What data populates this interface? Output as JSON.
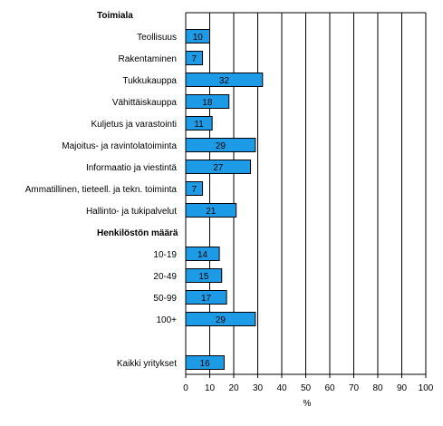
{
  "chart_data": {
    "type": "bar",
    "orientation": "horizontal",
    "xlabel": "%",
    "xlim": [
      0,
      100
    ],
    "xticks": [
      "0",
      "10",
      "20",
      "30",
      "40",
      "50",
      "60",
      "70",
      "80",
      "90",
      "100"
    ],
    "grid": "vertical",
    "bar_color": "#1E9BE6",
    "bar_edge_color": "#000000",
    "rows": [
      {
        "kind": "header",
        "label": "Toimiala"
      },
      {
        "kind": "bar",
        "label": "Teollisuus",
        "value": 10,
        "value_label": "10"
      },
      {
        "kind": "bar",
        "label": "Rakentaminen",
        "value": 7,
        "value_label": "7"
      },
      {
        "kind": "bar",
        "label": "Tukkukauppa",
        "value": 32,
        "value_label": "32"
      },
      {
        "kind": "bar",
        "label": "Vähittäiskauppa",
        "value": 18,
        "value_label": "18"
      },
      {
        "kind": "bar",
        "label": "Kuljetus ja varastointi",
        "value": 11,
        "value_label": "11"
      },
      {
        "kind": "bar",
        "label": "Majoitus- ja ravintolatoiminta",
        "value": 29,
        "value_label": "29"
      },
      {
        "kind": "bar",
        "label": "Informaatio ja viestintä",
        "value": 27,
        "value_label": "27"
      },
      {
        "kind": "bar",
        "label": "Ammatillinen, tieteell. ja tekn. toiminta",
        "value": 7,
        "value_label": "7"
      },
      {
        "kind": "bar",
        "label": "Hallinto- ja tukipalvelut",
        "value": 21,
        "value_label": "21"
      },
      {
        "kind": "header",
        "label": "Henkilöstön määrä"
      },
      {
        "kind": "bar",
        "label": "10-19",
        "value": 14,
        "value_label": "14"
      },
      {
        "kind": "bar",
        "label": "20-49",
        "value": 15,
        "value_label": "15"
      },
      {
        "kind": "bar",
        "label": "50-99",
        "value": 17,
        "value_label": "17"
      },
      {
        "kind": "bar",
        "label": "100+",
        "value": 29,
        "value_label": "29"
      },
      {
        "kind": "blank",
        "label": ""
      },
      {
        "kind": "bar",
        "label": "Kaikki yritykset",
        "value": 16,
        "value_label": "16"
      }
    ]
  }
}
